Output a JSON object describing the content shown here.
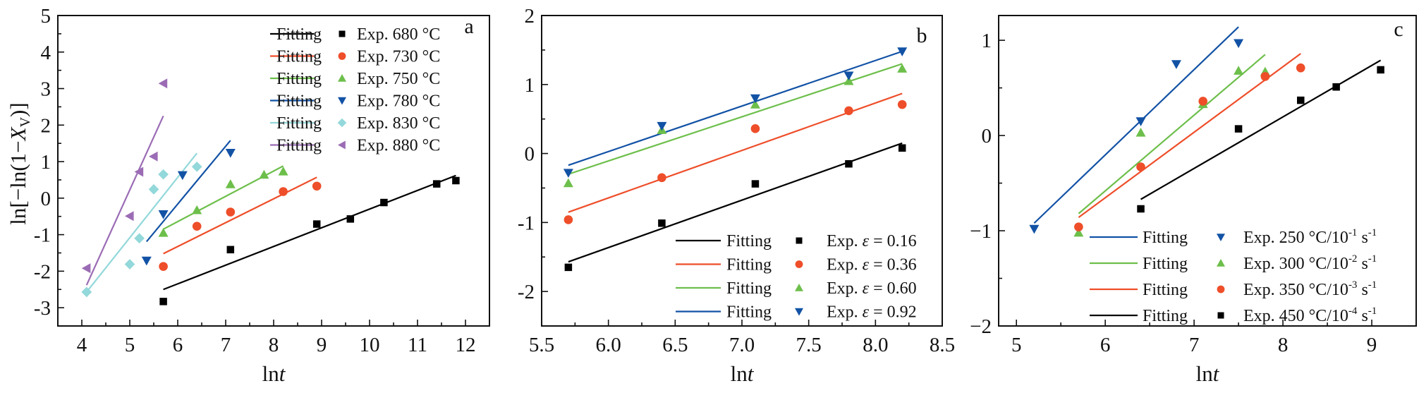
{
  "chart_data": [
    {
      "type": "scatter",
      "panel_label": "a",
      "xlabel": "lnt",
      "xlabel_parts": [
        "ln",
        "t"
      ],
      "ylabel": "ln[−ln(1−X_V)]",
      "xlim": [
        3.5,
        12.5
      ],
      "ylim": [
        -3.5,
        5
      ],
      "x_ticks": [
        4,
        5,
        6,
        7,
        8,
        9,
        10,
        11,
        12
      ],
      "x_tick_labels": [
        "4",
        "5",
        "6",
        "7",
        "8",
        "9",
        "10",
        "11",
        "12"
      ],
      "x_minor_step": 0.5,
      "y_ticks": [
        5,
        4,
        3,
        2,
        1,
        0,
        -1,
        -2,
        -3
      ],
      "y_tick_labels": [
        "5",
        "4",
        "3",
        "2",
        "1",
        "0",
        "-1",
        "-2",
        "-3"
      ],
      "y_minor_step": 0.5,
      "grid": false,
      "legend_position": "top-right",
      "legend_layout": "two-column",
      "series": [
        {
          "name": "Exp. 680 °C",
          "fit_label": "Fitting",
          "color": "#000000",
          "marker": "square",
          "x": [
            5.7,
            7.1,
            8.9,
            9.6,
            10.3,
            11.4,
            11.8
          ],
          "y": [
            -2.83,
            -1.41,
            -0.71,
            -0.57,
            -0.12,
            0.39,
            0.48
          ],
          "fit": {
            "x": [
              5.7,
              11.8
            ],
            "y": [
              -2.5,
              0.62
            ]
          }
        },
        {
          "name": "Exp. 730 °C",
          "fit_label": "Fitting",
          "color": "#ee4e2a",
          "marker": "circle",
          "x": [
            5.7,
            6.4,
            7.1,
            8.2,
            8.9
          ],
          "y": [
            -1.87,
            -0.77,
            -0.38,
            0.18,
            0.33
          ],
          "fit": {
            "x": [
              5.7,
              8.9
            ],
            "y": [
              -1.52,
              0.57
            ]
          }
        },
        {
          "name": "Exp. 750 °C",
          "fit_label": "Fitting",
          "color": "#6dbf4b",
          "marker": "triangle-up",
          "x": [
            5.7,
            6.4,
            7.1,
            7.8,
            8.2
          ],
          "y": [
            -0.95,
            -0.33,
            0.38,
            0.64,
            0.73
          ],
          "fit": {
            "x": [
              5.7,
              8.2
            ],
            "y": [
              -0.85,
              0.88
            ]
          }
        },
        {
          "name": "Exp. 780 °C",
          "fit_label": "Fitting",
          "color": "#1252a5",
          "marker": "triangle-down",
          "x": [
            5.35,
            5.7,
            6.1,
            7.1
          ],
          "y": [
            -1.71,
            -0.44,
            0.63,
            1.24
          ],
          "fit": {
            "x": [
              5.35,
              7.1
            ],
            "y": [
              -1.19,
              1.58
            ]
          }
        },
        {
          "name": "Exp. 830 °C",
          "fit_label": "Fitting",
          "color": "#93d8da",
          "marker": "diamond",
          "x": [
            4.1,
            5.0,
            5.2,
            5.5,
            5.7,
            6.4
          ],
          "y": [
            -2.57,
            -1.81,
            -1.1,
            0.24,
            0.65,
            0.86
          ],
          "fit": {
            "x": [
              4.1,
              6.4
            ],
            "y": [
              -2.57,
              1.23
            ]
          }
        },
        {
          "name": "Exp. 880 °C",
          "fit_label": "Fitting",
          "color": "#9b6cb5",
          "marker": "triangle-left",
          "x": [
            4.1,
            5.0,
            5.2,
            5.5,
            5.7
          ],
          "y": [
            -1.92,
            -0.49,
            0.72,
            1.14,
            3.14
          ],
          "fit": {
            "x": [
              4.1,
              5.7
            ],
            "y": [
              -2.38,
              2.25
            ]
          }
        }
      ]
    },
    {
      "type": "scatter",
      "panel_label": "b",
      "xlabel": "lnt",
      "xlabel_parts": [
        "ln",
        "t"
      ],
      "ylabel": "",
      "xlim": [
        5.5,
        8.5
      ],
      "ylim": [
        -2.5,
        2
      ],
      "x_ticks": [
        5.5,
        6.0,
        6.5,
        7.0,
        7.5,
        8.0,
        8.5
      ],
      "x_tick_labels": [
        "5.5",
        "6.0",
        "6.5",
        "7.0",
        "7.5",
        "8.0",
        "8.5"
      ],
      "x_minor_step": 0.25,
      "y_ticks": [
        2,
        1,
        0,
        -1,
        -2
      ],
      "y_tick_labels": [
        "2",
        "1",
        "0",
        "-1",
        "-2"
      ],
      "y_minor_step": 0.5,
      "grid": false,
      "legend_position": "bottom-right",
      "legend_layout": "two-column",
      "series": [
        {
          "name": "Exp.  ε = 0.16",
          "name_prefix": "Exp.",
          "name_var": "ε",
          "name_value": "= 0.16",
          "fit_label": "Fitting",
          "color": "#000000",
          "marker": "square",
          "x": [
            5.7,
            6.4,
            7.1,
            7.8,
            8.2
          ],
          "y": [
            -1.65,
            -1.01,
            -0.44,
            -0.15,
            0.08
          ],
          "fit": {
            "x": [
              5.7,
              8.2
            ],
            "y": [
              -1.57,
              0.15
            ]
          }
        },
        {
          "name": "Exp.  ε = 0.36",
          "name_prefix": "Exp.",
          "name_var": "ε",
          "name_value": "= 0.36",
          "fit_label": "Fitting",
          "color": "#ee4e2a",
          "marker": "circle",
          "x": [
            5.7,
            6.4,
            7.1,
            7.8,
            8.2
          ],
          "y": [
            -0.96,
            -0.35,
            0.36,
            0.62,
            0.71
          ],
          "fit": {
            "x": [
              5.7,
              8.2
            ],
            "y": [
              -0.85,
              0.87
            ]
          }
        },
        {
          "name": "Exp.  ε = 0.60",
          "name_prefix": "Exp.",
          "name_var": "ε",
          "name_value": "= 0.60",
          "fit_label": "Fitting",
          "color": "#6dbf4b",
          "marker": "triangle-up",
          "x": [
            5.7,
            6.4,
            7.1,
            7.8,
            8.2
          ],
          "y": [
            -0.43,
            0.34,
            0.71,
            1.05,
            1.23
          ],
          "fit": {
            "x": [
              5.7,
              8.2
            ],
            "y": [
              -0.3,
              1.3
            ]
          }
        },
        {
          "name": "Exp.  ε = 0.92",
          "name_prefix": "Exp.",
          "name_var": "ε",
          "name_value": "= 0.92",
          "fit_label": "Fitting",
          "color": "#1252a5",
          "marker": "triangle-down",
          "x": [
            5.7,
            6.4,
            7.1,
            7.8,
            8.2
          ],
          "y": [
            -0.28,
            0.4,
            0.8,
            1.13,
            1.48
          ],
          "fit": {
            "x": [
              5.7,
              8.2
            ],
            "y": [
              -0.17,
              1.48
            ]
          }
        }
      ]
    },
    {
      "type": "scatter",
      "panel_label": "c",
      "xlabel": "lnt",
      "xlabel_parts": [
        "ln",
        "t"
      ],
      "ylabel": "",
      "xlim": [
        4.8,
        9.5
      ],
      "ylim": [
        -2,
        1.26
      ],
      "x_ticks": [
        5,
        6,
        7,
        8,
        9
      ],
      "x_tick_labels": [
        "5",
        "6",
        "7",
        "8",
        "9"
      ],
      "x_minor_step": 0.5,
      "y_ticks": [
        1,
        0,
        -1,
        -2
      ],
      "y_tick_labels": [
        "1",
        "0",
        "−1",
        "−2"
      ],
      "y_minor_step": 0.5,
      "grid": false,
      "legend_position": "bottom-right",
      "legend_layout": "two-column",
      "series": [
        {
          "name": "Exp. 250 °C/10-1 s-1",
          "name_main": "Exp. 250 °C/10",
          "name_exp1": "-1",
          "name_unit": " s",
          "name_exp2": "-1",
          "fit_label": "Fitting",
          "color": "#1252a5",
          "marker": "triangle-down",
          "x": [
            5.2,
            6.4,
            6.8,
            7.5
          ],
          "y": [
            -0.98,
            0.15,
            0.75,
            0.97
          ],
          "fit": {
            "x": [
              5.2,
              7.5
            ],
            "y": [
              -0.92,
              1.14
            ]
          }
        },
        {
          "name": "Exp. 300 °C/10-2 s-1",
          "name_main": "Exp. 300 °C/10",
          "name_exp1": "-2",
          "name_unit": " s",
          "name_exp2": "-1",
          "fit_label": "Fitting",
          "color": "#6dbf4b",
          "marker": "triangle-up",
          "x": [
            5.7,
            6.4,
            7.1,
            7.5,
            7.8
          ],
          "y": [
            -1.02,
            0.03,
            0.33,
            0.68,
            0.67
          ],
          "fit": {
            "x": [
              5.7,
              7.8
            ],
            "y": [
              -0.82,
              0.85
            ]
          }
        },
        {
          "name": "Exp. 350 °C/10-3 s-1",
          "name_main": "Exp. 350 °C/10",
          "name_exp1": "-3",
          "name_unit": " s",
          "name_exp2": "-1",
          "fit_label": "Fitting",
          "color": "#ee4e2a",
          "marker": "circle",
          "x": [
            5.7,
            6.4,
            7.1,
            7.8,
            8.2
          ],
          "y": [
            -0.96,
            -0.33,
            0.36,
            0.62,
            0.71
          ],
          "fit": {
            "x": [
              5.7,
              8.2
            ],
            "y": [
              -0.86,
              0.86
            ]
          }
        },
        {
          "name": "Exp. 450 °C/10-4 s-1",
          "name_main": "Exp. 450 °C/10",
          "name_exp1": "-4",
          "name_unit": " s",
          "name_exp2": "-1",
          "fit_label": "Fitting",
          "color": "#000000",
          "marker": "square",
          "x": [
            6.4,
            7.5,
            8.2,
            8.6,
            9.1
          ],
          "y": [
            -0.77,
            0.07,
            0.37,
            0.51,
            0.69
          ],
          "fit": {
            "x": [
              6.4,
              9.1
            ],
            "y": [
              -0.67,
              0.79
            ]
          }
        }
      ]
    }
  ]
}
